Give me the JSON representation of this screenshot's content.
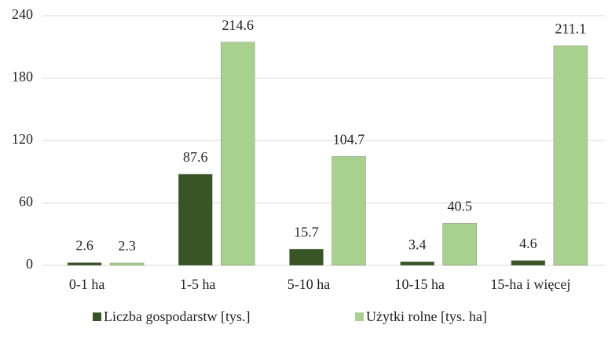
{
  "chart_data": {
    "type": "bar",
    "categories": [
      "0-1 ha",
      "1-5 ha",
      "5-10 ha",
      "10-15 ha",
      "15-ha i więcej"
    ],
    "series": [
      {
        "name": "Liczba gospodarstw [tys.]",
        "color": "#375623",
        "values": [
          2.6,
          87.6,
          15.7,
          3.4,
          4.6
        ]
      },
      {
        "name": "Użytki rolne [tys. ha]",
        "color": "#a9d18e",
        "values": [
          2.3,
          214.6,
          104.7,
          40.5,
          211.1
        ]
      }
    ],
    "ylim": [
      0,
      240
    ],
    "yticks": [
      0,
      60,
      120,
      180,
      240
    ],
    "grid": true,
    "legend": "bottom"
  }
}
